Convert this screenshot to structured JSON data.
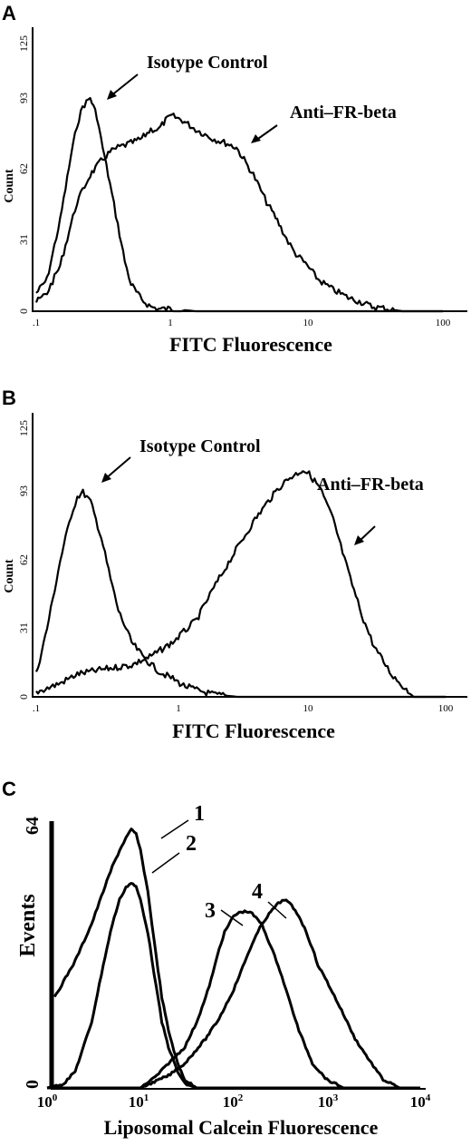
{
  "chart_data": [
    {
      "panel": "A",
      "type": "line",
      "xlabel": "FITC Fluorescence",
      "ylabel": "Count",
      "xscale": "log",
      "xlim": [
        0.1,
        100
      ],
      "ylim": [
        0,
        125
      ],
      "x_ticks": [
        ".1",
        "1",
        "10",
        "100"
      ],
      "y_ticks": [
        "0",
        "31",
        "62",
        "93",
        "125"
      ],
      "series": [
        {
          "name": "Isotype Control",
          "x": [
            0.1,
            0.12,
            0.15,
            0.18,
            0.2,
            0.22,
            0.25,
            0.28,
            0.3,
            0.35,
            0.4,
            0.45,
            0.5,
            0.6,
            0.7,
            0.8,
            1,
            1.5,
            2,
            5,
            10,
            100
          ],
          "y": [
            8,
            14,
            40,
            68,
            82,
            90,
            94,
            86,
            76,
            56,
            38,
            22,
            12,
            5,
            2,
            1,
            1,
            0,
            0,
            0,
            0,
            0
          ]
        },
        {
          "name": "Anti-FR-beta",
          "x": [
            0.1,
            0.12,
            0.15,
            0.18,
            0.2,
            0.25,
            0.3,
            0.35,
            0.4,
            0.5,
            0.6,
            0.7,
            0.8,
            0.9,
            1,
            1.2,
            1.5,
            2,
            2.5,
            3,
            4,
            5,
            6,
            7,
            8,
            10,
            12,
            15,
            20,
            25,
            30,
            40,
            50,
            100
          ],
          "y": [
            4,
            8,
            20,
            38,
            48,
            60,
            66,
            70,
            72,
            74,
            76,
            80,
            80,
            84,
            86,
            84,
            80,
            76,
            74,
            72,
            60,
            48,
            40,
            32,
            26,
            20,
            14,
            10,
            6,
            4,
            2,
            1,
            0,
            0
          ]
        }
      ],
      "annotations": [
        "Isotype Control",
        "Anti–FR-beta"
      ]
    },
    {
      "panel": "B",
      "type": "line",
      "xlabel": "FITC Fluorescence",
      "ylabel": "Count",
      "xscale": "log",
      "xlim": [
        0.1,
        100
      ],
      "ylim": [
        0,
        125
      ],
      "x_ticks": [
        ".1",
        "1",
        "10",
        "100"
      ],
      "y_ticks": [
        "0",
        "31",
        "62",
        "93",
        "125"
      ],
      "series": [
        {
          "name": "Isotype Control",
          "x": [
            0.1,
            0.12,
            0.15,
            0.18,
            0.2,
            0.22,
            0.25,
            0.3,
            0.35,
            0.4,
            0.5,
            0.6,
            0.7,
            0.8,
            1,
            1.2,
            1.5,
            2,
            3,
            5,
            100
          ],
          "y": [
            10,
            30,
            60,
            80,
            88,
            90,
            86,
            70,
            52,
            38,
            24,
            18,
            14,
            11,
            8,
            5,
            3,
            1,
            0,
            0,
            0
          ]
        },
        {
          "name": "Anti-FR-beta",
          "x": [
            0.1,
            0.15,
            0.2,
            0.3,
            0.5,
            0.7,
            1,
            1.5,
            2,
            3,
            4,
            5,
            6,
            7,
            8,
            9,
            10,
            12,
            15,
            20,
            25,
            30,
            40,
            50,
            60,
            100
          ],
          "y": [
            2,
            6,
            10,
            12,
            14,
            18,
            24,
            34,
            48,
            66,
            78,
            86,
            92,
            96,
            98,
            100,
            98,
            92,
            78,
            52,
            34,
            22,
            10,
            4,
            0,
            0
          ]
        }
      ],
      "annotations": [
        "Isotype Control",
        "Anti–FR-beta"
      ]
    },
    {
      "panel": "C",
      "type": "line",
      "xlabel": "Liposomal Calcein Fluorescence",
      "ylabel": "Events",
      "xscale": "log",
      "xlim": [
        1,
        10000
      ],
      "ylim": [
        0,
        64
      ],
      "x_ticks": [
        {
          "base": "10",
          "exp": "0"
        },
        {
          "base": "10",
          "exp": "1"
        },
        {
          "base": "10",
          "exp": "2"
        },
        {
          "base": "10",
          "exp": "3"
        },
        {
          "base": "10",
          "exp": "4"
        }
      ],
      "y_ticks": [
        "0",
        "64"
      ],
      "series": [
        {
          "name": "1",
          "x": [
            1.2,
            1.5,
            2,
            3,
            4,
            5,
            6,
            7,
            8,
            9,
            10,
            12,
            14,
            17,
            20,
            25,
            30,
            40,
            60,
            100,
            10000
          ],
          "y": [
            22,
            26,
            31,
            40,
            48,
            54,
            58,
            61,
            63,
            62,
            58,
            48,
            36,
            22,
            14,
            6,
            2,
            0,
            0,
            0,
            0
          ]
        },
        {
          "name": "2",
          "x": [
            1,
            1.5,
            2,
            3,
            4,
            5,
            6,
            7,
            8,
            9,
            10,
            12,
            14,
            17,
            20,
            25,
            30,
            40,
            60,
            100,
            10000
          ],
          "y": [
            0,
            1,
            4,
            16,
            30,
            40,
            46,
            49,
            50,
            49,
            46,
            38,
            28,
            16,
            10,
            4,
            1,
            0,
            0,
            0,
            0
          ]
        },
        {
          "name": "3",
          "x": [
            1,
            10,
            15,
            20,
            30,
            40,
            50,
            60,
            70,
            80,
            100,
            120,
            150,
            200,
            300,
            500,
            700,
            1000,
            1500,
            2000,
            4000,
            10000
          ],
          "y": [
            0,
            0,
            3,
            6,
            10,
            16,
            22,
            28,
            34,
            38,
            42,
            43,
            43,
            40,
            30,
            14,
            6,
            2,
            0,
            0,
            0,
            0
          ]
        },
        {
          "name": "4",
          "x": [
            1,
            10,
            20,
            30,
            50,
            70,
            100,
            150,
            200,
            250,
            300,
            350,
            400,
            500,
            600,
            700,
            800,
            1000,
            1500,
            2000,
            3000,
            4000,
            6000,
            10000
          ],
          "y": [
            0,
            0,
            3,
            6,
            12,
            17,
            24,
            34,
            40,
            43,
            45,
            46,
            45,
            42,
            38,
            34,
            30,
            26,
            18,
            12,
            6,
            2,
            0,
            0
          ]
        }
      ],
      "annotations": [
        "1",
        "2",
        "3",
        "4"
      ]
    }
  ]
}
